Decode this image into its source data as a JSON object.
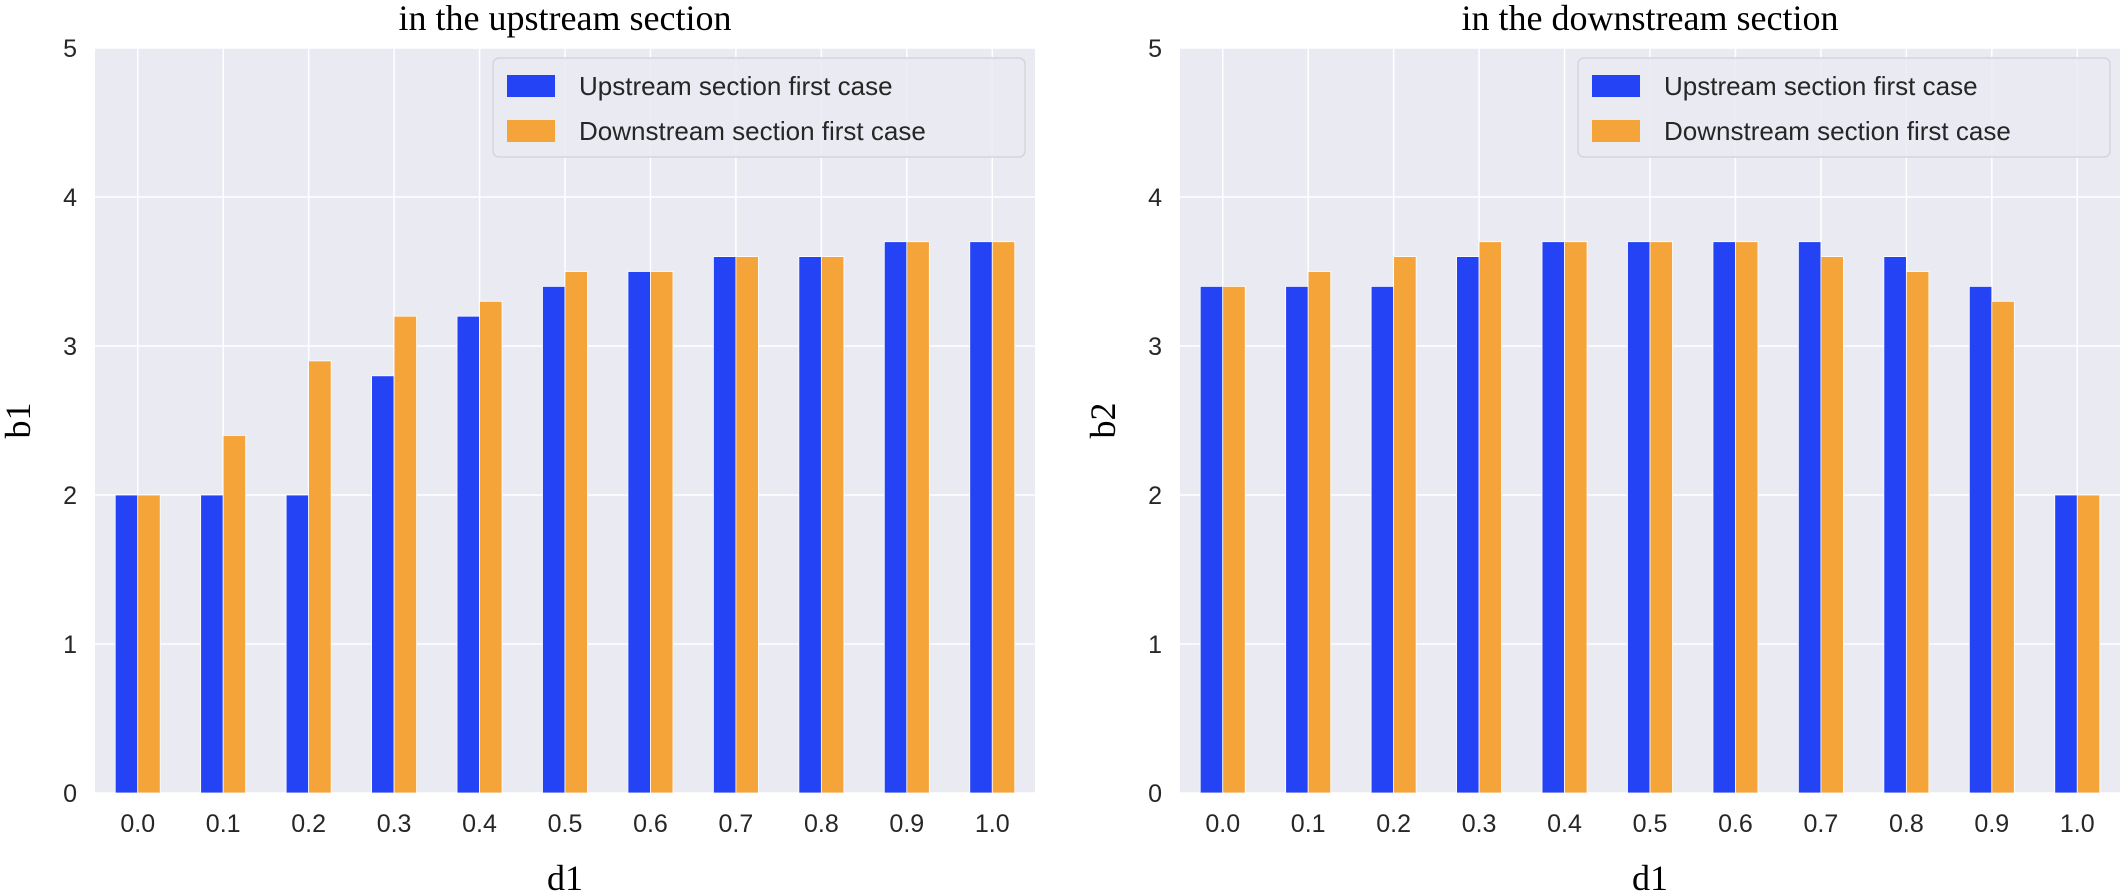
{
  "chart_data": [
    {
      "type": "bar",
      "title": "in the upstream section",
      "xlabel": "d1",
      "ylabel": "b1",
      "categories": [
        "0.0",
        "0.1",
        "0.2",
        "0.3",
        "0.4",
        "0.5",
        "0.6",
        "0.7",
        "0.8",
        "0.9",
        "1.0"
      ],
      "ylim": [
        0,
        5
      ],
      "yticks": [
        0,
        1,
        2,
        3,
        4,
        5
      ],
      "grid": true,
      "legend_position": "top-right",
      "series": [
        {
          "name": "Upstream section first case",
          "color": "#2443f5",
          "values": [
            2.0,
            2.0,
            2.0,
            2.8,
            3.2,
            3.4,
            3.5,
            3.6,
            3.6,
            3.7,
            3.7
          ]
        },
        {
          "name": "Downstream section first case",
          "color": "#f5a43a",
          "values": [
            2.0,
            2.4,
            2.9,
            3.2,
            3.3,
            3.5,
            3.5,
            3.6,
            3.6,
            3.7,
            3.7
          ]
        }
      ]
    },
    {
      "type": "bar",
      "title": "in the downstream section",
      "xlabel": "d1",
      "ylabel": "b2",
      "categories": [
        "0.0",
        "0.1",
        "0.2",
        "0.3",
        "0.4",
        "0.5",
        "0.6",
        "0.7",
        "0.8",
        "0.9",
        "1.0"
      ],
      "ylim": [
        0,
        5
      ],
      "yticks": [
        0,
        1,
        2,
        3,
        4,
        5
      ],
      "grid": true,
      "legend_position": "top-right",
      "series": [
        {
          "name": "Upstream section first case",
          "color": "#2443f5",
          "values": [
            3.4,
            3.4,
            3.4,
            3.6,
            3.7,
            3.7,
            3.7,
            3.7,
            3.6,
            3.4,
            2.0
          ]
        },
        {
          "name": "Downstream section first case",
          "color": "#f5a43a",
          "values": [
            3.4,
            3.5,
            3.6,
            3.7,
            3.7,
            3.7,
            3.7,
            3.6,
            3.5,
            3.3,
            2.0
          ]
        }
      ]
    }
  ],
  "colors": {
    "plot_background": "#eaeaf2",
    "grid": "#ffffff"
  }
}
